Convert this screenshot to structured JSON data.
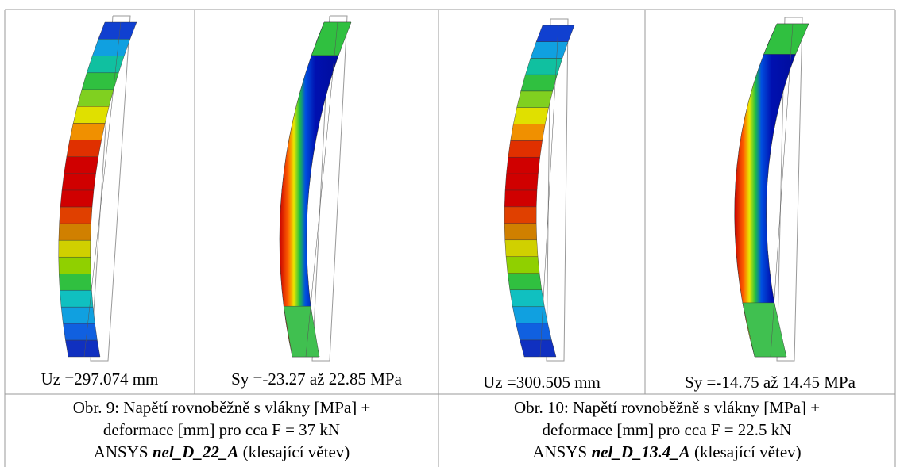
{
  "figures": [
    {
      "panels": [
        {
          "label": "Uz =297.074 mm"
        },
        {
          "label": "Sy =-23.27 až 22.85 MPa"
        }
      ],
      "caption": {
        "line1": "Obr. 9: Napětí rovnoběžně s vlákny [MPa] +",
        "line2": "deformace [mm] pro cca F = 37 kN",
        "prefix": "ANSYS",
        "bold": "nel_D_22_A",
        "suffix": "(klesající větev)"
      }
    },
    {
      "panels": [
        {
          "label": "Uz =300.505 mm"
        },
        {
          "label": "Sy =-14.75 až 14.45 MPa"
        }
      ],
      "caption": {
        "line1": "Obr. 10: Napětí rovnoběžně s vlákny [MPa] +",
        "line2": "deformace [mm] pro cca F = 22.5 kN",
        "prefix": "ANSYS",
        "bold": "nel_D_13.4_A",
        "suffix": "(klesající větev)"
      }
    }
  ]
}
